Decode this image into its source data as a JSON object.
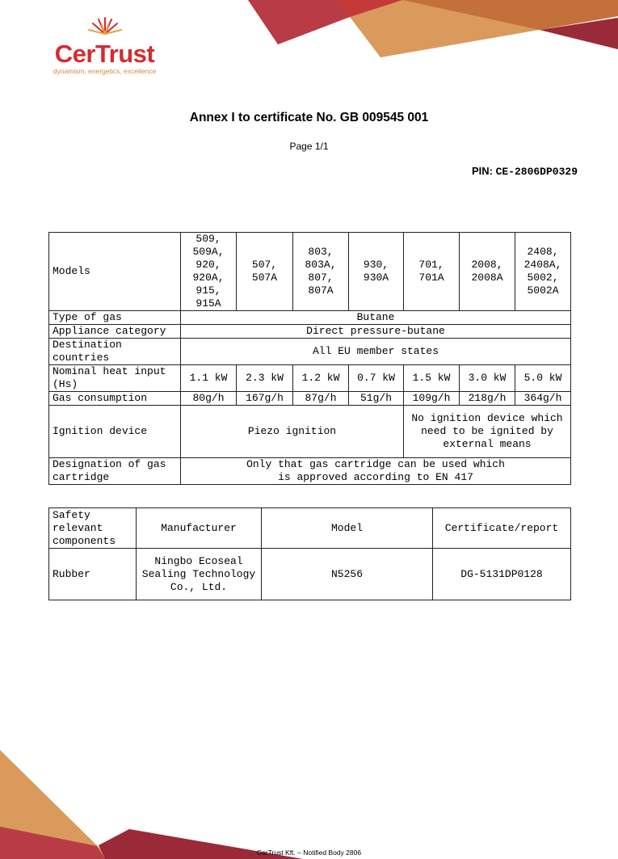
{
  "logo": {
    "name": "CerTrust",
    "tagline": "dynamism, energetics, excellence"
  },
  "colors": {
    "brand_red": "#d52b2f",
    "orange": "#d9873c",
    "dark_red": "#9a2a37"
  },
  "title": "Annex I to certificate No. GB 009545 001",
  "page": "Page 1/1",
  "pin": {
    "label": "PIN:",
    "value": "CE-2806DP0329"
  },
  "table1": {
    "models_label": "Models",
    "models": [
      "509,\n509A,\n920,\n920A,\n915,\n915A",
      "507,\n507A",
      "803,\n803A,\n807,\n807A",
      "930,\n930A",
      "701,\n701A",
      "2008,\n2008A",
      "2408,\n2408A,\n5002,\n5002A"
    ],
    "gas_type_label": "Type of gas",
    "gas_type": "Butane",
    "category_label": "Appliance category",
    "category": "Direct pressure-butane",
    "destination_label": "Destination countries",
    "destination": "All EU member states",
    "heat_label": "Nominal heat input (Hs)",
    "heat": [
      "1.1 kW",
      "2.3 kW",
      "1.2 kW",
      "0.7 kW",
      "1.5 kW",
      "3.0 kW",
      "5.0 kW"
    ],
    "consumption_label": "Gas consumption",
    "consumption": [
      "80g/h",
      "167g/h",
      "87g/h",
      "51g/h",
      "109g/h",
      "218g/h",
      "364g/h"
    ],
    "ignition_label": "Ignition device",
    "ignition_a": "Piezo ignition",
    "ignition_b": "No ignition device which need to be ignited by external means",
    "cartridge_label": "Designation of gas cartridge",
    "cartridge": "Only that gas cartridge can be used which is approved according to EN 417"
  },
  "table2": {
    "headers": [
      "Safety relevant components",
      "Manufacturer",
      "Model",
      "Certificate/report"
    ],
    "rows": [
      [
        "Rubber",
        "Ningbo Ecoseal Sealing Technology Co., Ltd.",
        "N5256",
        "DG-5131DP0128"
      ]
    ]
  },
  "footer": "CerTrust Kft. – Notified Body 2806"
}
